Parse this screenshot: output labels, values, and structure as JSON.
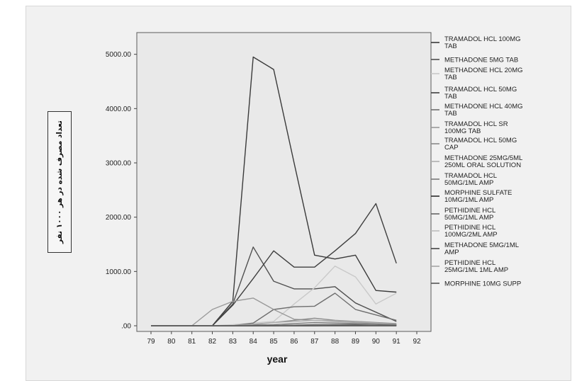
{
  "chart_data": {
    "type": "line",
    "xlabel": "year",
    "ylabel": "تعداد مصرف شده در هر ۱۰۰۰ نفر",
    "categories": [
      "79",
      "80",
      "81",
      "82",
      "83",
      "84",
      "85",
      "86",
      "87",
      "88",
      "89",
      "90",
      "91",
      "92"
    ],
    "ylim": [
      0,
      5400
    ],
    "yticks": [
      0,
      1000,
      2000,
      3000,
      4000,
      5000
    ],
    "ytick_labels": [
      ".00",
      "1000.00",
      "2000.00",
      "3000.00",
      "4000.00",
      "5000.00"
    ],
    "grid": false,
    "legend_placement": "right",
    "series": [
      {
        "name": "TRAMADOL HCL 100MG TAB",
        "color": "#3a3a3a",
        "values": [
          0,
          0,
          0,
          0,
          450,
          4950,
          4720,
          3000,
          1300,
          1230,
          1300,
          650,
          620,
          null
        ]
      },
      {
        "name": "METHADONE 5MG TAB",
        "color": "#505050",
        "values": [
          0,
          0,
          0,
          0,
          400,
          1450,
          820,
          680,
          680,
          720,
          420,
          250,
          80,
          null
        ]
      },
      {
        "name": "METHADONE HCL 20MG TAB",
        "color": "#c9c9c9",
        "values": [
          0,
          0,
          0,
          0,
          20,
          50,
          80,
          400,
          700,
          1100,
          900,
          400,
          600,
          null
        ]
      },
      {
        "name": "TRAMADOL HCL 50MG TAB",
        "color": "#3f3f3f",
        "values": [
          0,
          0,
          0,
          0,
          380,
          870,
          1380,
          1080,
          1080,
          1380,
          1700,
          2250,
          1150,
          null
        ]
      },
      {
        "name": "METHADONE HCL 40MG TAB",
        "color": "#6e6e6e",
        "values": [
          0,
          0,
          0,
          0,
          0,
          50,
          300,
          350,
          360,
          600,
          300,
          200,
          100,
          null
        ]
      },
      {
        "name": "TRAMADOL HCL SR 100MG TAB",
        "color": "#9a9a9a",
        "values": [
          0,
          0,
          0,
          300,
          450,
          510,
          300,
          120,
          100,
          80,
          60,
          40,
          30,
          null
        ]
      },
      {
        "name": "TRAMADOL HCL 50MG CAP",
        "color": "#8a8a8a",
        "values": [
          0,
          0,
          0,
          0,
          0,
          20,
          60,
          100,
          140,
          100,
          80,
          60,
          40,
          null
        ]
      },
      {
        "name": "METHADONE 25MG/5ML 250ML ORAL SOLUTION",
        "color": "#b0b0b0",
        "values": [
          0,
          0,
          0,
          0,
          0,
          30,
          60,
          80,
          100,
          90,
          70,
          50,
          30,
          null
        ]
      },
      {
        "name": "TRAMADOL HCL 50MG/1ML AMP",
        "color": "#7a7a7a",
        "values": [
          0,
          0,
          0,
          0,
          0,
          10,
          20,
          40,
          60,
          50,
          40,
          30,
          20,
          null
        ]
      },
      {
        "name": "MORPHINE SULFATE 10MG/1ML AMP",
        "color": "#2a2a2a",
        "values": [
          0,
          0,
          0,
          0,
          0,
          0,
          0,
          10,
          20,
          20,
          20,
          10,
          10,
          null
        ]
      },
      {
        "name": "PETHIDINE HCL 50MG/1ML AMP",
        "color": "#666666",
        "values": [
          0,
          0,
          0,
          0,
          0,
          0,
          0,
          10,
          10,
          10,
          10,
          10,
          10,
          null
        ]
      },
      {
        "name": "PETHIDINE HCL 100MG/2ML AMP",
        "color": "#bdbdbd",
        "values": [
          0,
          0,
          0,
          0,
          0,
          0,
          0,
          0,
          10,
          10,
          10,
          5,
          5,
          null
        ]
      },
      {
        "name": "METHADONE 5MG/1ML AMP",
        "color": "#444444",
        "values": [
          0,
          0,
          0,
          0,
          0,
          0,
          0,
          0,
          0,
          5,
          5,
          5,
          5,
          null
        ]
      },
      {
        "name": "PETHIDINE HCL 25MG/1ML 1ML AMP",
        "color": "#a5a5a5",
        "values": [
          0,
          0,
          0,
          0,
          0,
          0,
          0,
          0,
          0,
          0,
          0,
          0,
          0,
          null
        ]
      },
      {
        "name": "MORPHINE 10MG SUPP",
        "color": "#555555",
        "values": [
          0,
          0,
          0,
          0,
          0,
          0,
          0,
          0,
          0,
          0,
          0,
          0,
          0,
          null
        ]
      }
    ]
  }
}
